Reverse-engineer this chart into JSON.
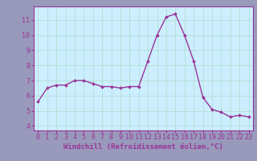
{
  "x": [
    0,
    1,
    2,
    3,
    4,
    5,
    6,
    7,
    8,
    9,
    10,
    11,
    12,
    13,
    14,
    15,
    16,
    17,
    18,
    19,
    20,
    21,
    22,
    23
  ],
  "y": [
    5.6,
    6.5,
    6.7,
    6.7,
    7.0,
    7.0,
    6.8,
    6.6,
    6.6,
    6.5,
    6.6,
    6.6,
    8.3,
    10.0,
    11.2,
    11.4,
    10.0,
    8.3,
    5.9,
    5.1,
    4.9,
    4.6,
    4.7,
    4.6
  ],
  "line_color": "#993399",
  "marker": "D",
  "markersize": 2.0,
  "linewidth": 1.0,
  "background_color": "#cceeff",
  "grid_color": "#aaddcc",
  "xlabel": "Windchill (Refroidissement éolien,°C)",
  "xlabel_fontsize": 6.5,
  "xlabel_color": "#993399",
  "ylabel_ticks": [
    4,
    5,
    6,
    7,
    8,
    9,
    10,
    11
  ],
  "xticks": [
    0,
    1,
    2,
    3,
    4,
    5,
    6,
    7,
    8,
    9,
    10,
    11,
    12,
    13,
    14,
    15,
    16,
    17,
    18,
    19,
    20,
    21,
    22,
    23
  ],
  "ylim": [
    3.7,
    11.9
  ],
  "xlim": [
    -0.5,
    23.5
  ],
  "tick_fontsize": 6.0,
  "tick_color": "#993399",
  "spine_color": "#993399",
  "outer_bg": "#9999bb"
}
